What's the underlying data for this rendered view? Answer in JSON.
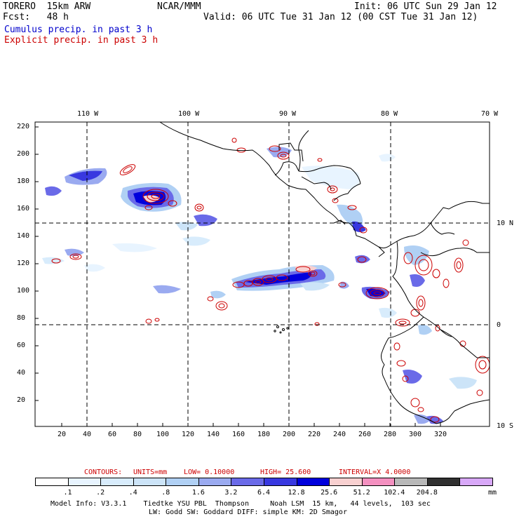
{
  "header": {
    "model_name": "TORERO  15km ARW",
    "center": "NCAR/MMM",
    "init": "Init: 06 UTC Sun 29 Jan 12",
    "fcst": "Fcst:   48 h",
    "valid": "Valid: 06 UTC Tue 31 Jan 12 (00 CST Tue 31 Jan 12)",
    "cumulus_label": "Cumulus precip. in past 3 h",
    "explicit_label": "Explicit precip. in past 3 h"
  },
  "colors": {
    "cumulus": "#0000cc",
    "explicit": "#cc0000",
    "contours_line": "#cc0000",
    "grid": "#000000",
    "coast": "#000000"
  },
  "map": {
    "lon_labels": [
      "110 W",
      "100 W",
      "90 W",
      "80 W",
      "70 W"
    ],
    "lat_labels": [
      "10 N",
      "0",
      "10 S"
    ],
    "y_ticks": [
      "220",
      "200",
      "180",
      "160",
      "140",
      "120",
      "100",
      "80",
      "60",
      "40",
      "20"
    ],
    "x_ticks": [
      "20",
      "40",
      "60",
      "80",
      "100",
      "120",
      "140",
      "160",
      "180",
      "200",
      "220",
      "240",
      "260",
      "280",
      "300",
      "320"
    ]
  },
  "contours_info": {
    "contours": "CONTOURS:",
    "units": "UNITS=mm",
    "low": "LOW= 0.10000",
    "high": "HIGH= 25.600",
    "interval": "INTERVAL=X 4.0000"
  },
  "colorbar": {
    "colors": [
      "#ffffff",
      "#e8f4ff",
      "#d8ecfc",
      "#cce4f8",
      "#b0d0f4",
      "#9aaaf0",
      "#6a6ae8",
      "#3838e0",
      "#0000dc",
      "#f8d0d0",
      "#f490c0",
      "#b8b8b8",
      "#303030",
      "#d8a8f8"
    ],
    "labels": [
      ".1",
      ".2",
      ".4",
      ".8",
      "1.6",
      "3.2",
      "6.4",
      "12.8",
      "25.6",
      "51.2",
      "102.4",
      "204.8"
    ],
    "unit": "mm"
  },
  "footer": {
    "line1": "Model Info: V3.3.1    Tiedtke YSU PBL  Thompson     Noah LSM  15 km,   44 levels,  103 sec",
    "line2": "LW: Godd SW: Goddard DIFF: simple KM: 2D Smagor"
  }
}
